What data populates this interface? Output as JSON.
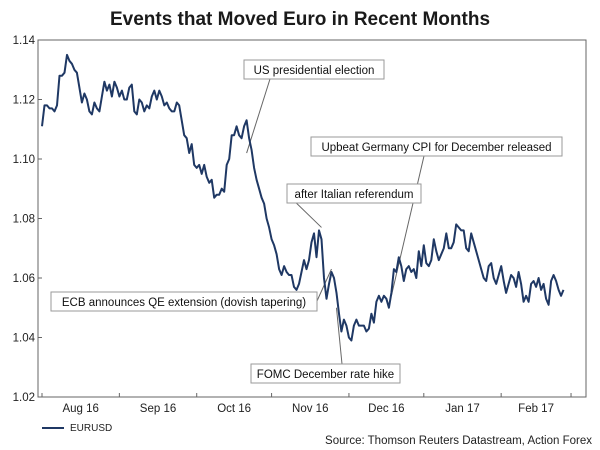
{
  "chart_data": {
    "type": "line",
    "title": "Events that Moved Euro in Recent Months",
    "xlabel": "",
    "ylabel": "",
    "ylim": [
      1.02,
      1.14
    ],
    "yticks": [
      "1.14",
      "1.12",
      "1.10",
      "1.08",
      "1.06",
      "1.04",
      "1.02"
    ],
    "xticks": [
      "Aug 16",
      "Sep 16",
      "Oct 16",
      "Nov 16",
      "Dec 16",
      "Jan 17",
      "Feb 17"
    ],
    "x_range_days": [
      0,
      218
    ],
    "series": [
      {
        "name": "EURUSD",
        "color": "#1f3864",
        "points": [
          [
            0,
            1.111
          ],
          [
            1,
            1.118
          ],
          [
            2,
            1.118
          ],
          [
            3,
            1.117
          ],
          [
            4,
            1.117
          ],
          [
            5,
            1.116
          ],
          [
            6,
            1.118
          ],
          [
            7,
            1.128
          ],
          [
            8,
            1.128
          ],
          [
            9,
            1.129
          ],
          [
            10,
            1.135
          ],
          [
            11,
            1.133
          ],
          [
            12,
            1.132
          ],
          [
            13,
            1.13
          ],
          [
            14,
            1.129
          ],
          [
            15,
            1.124
          ],
          [
            16,
            1.119
          ],
          [
            17,
            1.122
          ],
          [
            18,
            1.12
          ],
          [
            19,
            1.116
          ],
          [
            20,
            1.115
          ],
          [
            21,
            1.119
          ],
          [
            22,
            1.117
          ],
          [
            23,
            1.116
          ],
          [
            24,
            1.121
          ],
          [
            25,
            1.126
          ],
          [
            26,
            1.123
          ],
          [
            27,
            1.125
          ],
          [
            28,
            1.121
          ],
          [
            29,
            1.126
          ],
          [
            30,
            1.124
          ],
          [
            31,
            1.121
          ],
          [
            32,
            1.123
          ],
          [
            33,
            1.12
          ],
          [
            34,
            1.12
          ],
          [
            35,
            1.124
          ],
          [
            36,
            1.125
          ],
          [
            37,
            1.116
          ],
          [
            38,
            1.115
          ],
          [
            39,
            1.12
          ],
          [
            40,
            1.119
          ],
          [
            41,
            1.116
          ],
          [
            42,
            1.118
          ],
          [
            43,
            1.117
          ],
          [
            44,
            1.121
          ],
          [
            45,
            1.123
          ],
          [
            46,
            1.12
          ],
          [
            47,
            1.123
          ],
          [
            48,
            1.121
          ],
          [
            49,
            1.118
          ],
          [
            50,
            1.119
          ],
          [
            51,
            1.117
          ],
          [
            52,
            1.116
          ],
          [
            53,
            1.116
          ],
          [
            54,
            1.119
          ],
          [
            55,
            1.118
          ],
          [
            56,
            1.113
          ],
          [
            57,
            1.108
          ],
          [
            58,
            1.107
          ],
          [
            59,
            1.102
          ],
          [
            60,
            1.105
          ],
          [
            61,
            1.098
          ],
          [
            62,
            1.097
          ],
          [
            63,
            1.098
          ],
          [
            64,
            1.095
          ],
          [
            65,
            1.098
          ],
          [
            66,
            1.094
          ],
          [
            67,
            1.092
          ],
          [
            68,
            1.093
          ],
          [
            69,
            1.087
          ],
          [
            70,
            1.088
          ],
          [
            71,
            1.088
          ],
          [
            72,
            1.09
          ],
          [
            73,
            1.089
          ],
          [
            74,
            1.098
          ],
          [
            75,
            1.1
          ],
          [
            76,
            1.108
          ],
          [
            77,
            1.108
          ],
          [
            78,
            1.111
          ],
          [
            79,
            1.108
          ],
          [
            80,
            1.107
          ],
          [
            81,
            1.111
          ],
          [
            82,
            1.113
          ],
          [
            83,
            1.107
          ],
          [
            84,
            1.103
          ],
          [
            85,
            1.097
          ],
          [
            86,
            1.093
          ],
          [
            87,
            1.09
          ],
          [
            88,
            1.087
          ],
          [
            89,
            1.085
          ],
          [
            90,
            1.08
          ],
          [
            91,
            1.077
          ],
          [
            92,
            1.073
          ],
          [
            93,
            1.071
          ],
          [
            94,
            1.068
          ],
          [
            95,
            1.063
          ],
          [
            96,
            1.061
          ],
          [
            97,
            1.064
          ],
          [
            98,
            1.062
          ],
          [
            99,
            1.061
          ],
          [
            100,
            1.061
          ],
          [
            101,
            1.057
          ],
          [
            102,
            1.056
          ],
          [
            103,
            1.058
          ],
          [
            104,
            1.062
          ],
          [
            105,
            1.066
          ],
          [
            106,
            1.063
          ],
          [
            107,
            1.066
          ],
          [
            108,
            1.072
          ],
          [
            109,
            1.075
          ],
          [
            110,
            1.067
          ],
          [
            111,
            1.076
          ],
          [
            112,
            1.073
          ],
          [
            113,
            1.06
          ],
          [
            114,
            1.053
          ],
          [
            115,
            1.058
          ],
          [
            116,
            1.062
          ],
          [
            117,
            1.06
          ],
          [
            118,
            1.055
          ],
          [
            119,
            1.048
          ],
          [
            120,
            1.042
          ],
          [
            121,
            1.046
          ],
          [
            122,
            1.044
          ],
          [
            123,
            1.04
          ],
          [
            124,
            1.039
          ],
          [
            125,
            1.044
          ],
          [
            126,
            1.046
          ],
          [
            127,
            1.044
          ],
          [
            128,
            1.044
          ],
          [
            129,
            1.044
          ],
          [
            130,
            1.042
          ],
          [
            131,
            1.043
          ],
          [
            132,
            1.048
          ],
          [
            133,
            1.045
          ],
          [
            134,
            1.052
          ],
          [
            135,
            1.054
          ],
          [
            136,
            1.052
          ],
          [
            137,
            1.054
          ],
          [
            138,
            1.053
          ],
          [
            139,
            1.05
          ],
          [
            140,
            1.055
          ],
          [
            141,
            1.063
          ],
          [
            142,
            1.062
          ],
          [
            143,
            1.067
          ],
          [
            144,
            1.064
          ],
          [
            145,
            1.059
          ],
          [
            146,
            1.063
          ],
          [
            147,
            1.064
          ],
          [
            148,
            1.062
          ],
          [
            149,
            1.063
          ],
          [
            150,
            1.06
          ],
          [
            151,
            1.069
          ],
          [
            152,
            1.064
          ],
          [
            153,
            1.071
          ],
          [
            154,
            1.065
          ],
          [
            155,
            1.064
          ],
          [
            156,
            1.066
          ],
          [
            157,
            1.073
          ],
          [
            158,
            1.069
          ],
          [
            159,
            1.066
          ],
          [
            160,
            1.068
          ],
          [
            161,
            1.07
          ],
          [
            162,
            1.075
          ],
          [
            163,
            1.07
          ],
          [
            164,
            1.07
          ],
          [
            165,
            1.072
          ],
          [
            166,
            1.078
          ],
          [
            167,
            1.077
          ],
          [
            168,
            1.076
          ],
          [
            169,
            1.076
          ],
          [
            170,
            1.07
          ],
          [
            171,
            1.069
          ],
          [
            172,
            1.075
          ],
          [
            173,
            1.072
          ],
          [
            174,
            1.069
          ],
          [
            175,
            1.066
          ],
          [
            176,
            1.063
          ],
          [
            177,
            1.06
          ],
          [
            178,
            1.059
          ],
          [
            179,
            1.064
          ],
          [
            180,
            1.065
          ],
          [
            181,
            1.06
          ],
          [
            182,
            1.058
          ],
          [
            183,
            1.061
          ],
          [
            184,
            1.064
          ],
          [
            185,
            1.059
          ],
          [
            186,
            1.055
          ],
          [
            187,
            1.058
          ],
          [
            188,
            1.061
          ],
          [
            189,
            1.06
          ],
          [
            190,
            1.057
          ],
          [
            191,
            1.062
          ],
          [
            192,
            1.058
          ],
          [
            193,
            1.052
          ],
          [
            194,
            1.054
          ],
          [
            195,
            1.052
          ],
          [
            196,
            1.058
          ],
          [
            197,
            1.059
          ],
          [
            198,
            1.057
          ],
          [
            199,
            1.06
          ],
          [
            200,
            1.056
          ],
          [
            201,
            1.058
          ],
          [
            202,
            1.053
          ],
          [
            203,
            1.051
          ],
          [
            204,
            1.059
          ],
          [
            205,
            1.061
          ],
          [
            206,
            1.059
          ],
          [
            207,
            1.056
          ],
          [
            208,
            1.054
          ],
          [
            209,
            1.056
          ]
        ]
      }
    ],
    "annotations": [
      {
        "text": "US presidential election",
        "point": [
          82,
          1.102
        ]
      },
      {
        "text": "Upbeat Germany CPI for December released",
        "point": [
          140,
          1.054
        ]
      },
      {
        "text": "after Italian referendum",
        "point": [
          112,
          1.077
        ]
      },
      {
        "text": "ECB announces QE extension (dovish tapering)",
        "point": [
          116,
          1.063
        ]
      },
      {
        "text": "FOMC December rate hike",
        "point": [
          118,
          1.05
        ]
      }
    ],
    "legend": {
      "label": "EURUSD",
      "placement": "bottom-left"
    },
    "source": "Source: Thomson Reuters Datastream, Action Forex"
  }
}
